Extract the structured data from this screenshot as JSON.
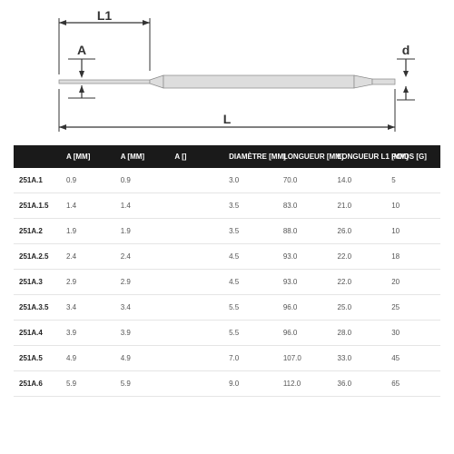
{
  "diagram": {
    "labels": {
      "L1": "L1",
      "A": "A",
      "d": "d",
      "L": "L"
    },
    "line_color": "#333333",
    "body_fill": "#dddddd",
    "body_stroke": "#888888"
  },
  "table": {
    "header_bg": "#1a1a1a",
    "header_color": "#ffffff",
    "row_border": "#e5e5e5",
    "columns": [
      "",
      "A [MM]",
      "A [MM]",
      "A []",
      "DIAMÈTRE [MM]",
      "LONGUEUR [MM]",
      "LONGUEUR L1 [MM]",
      "POIDS [G]"
    ],
    "rows": [
      [
        "251A.1",
        "0.9",
        "0.9",
        "",
        "3.0",
        "70.0",
        "14.0",
        "5"
      ],
      [
        "251A.1.5",
        "1.4",
        "1.4",
        "",
        "3.5",
        "83.0",
        "21.0",
        "10"
      ],
      [
        "251A.2",
        "1.9",
        "1.9",
        "",
        "3.5",
        "88.0",
        "26.0",
        "10"
      ],
      [
        "251A.2.5",
        "2.4",
        "2.4",
        "",
        "4.5",
        "93.0",
        "22.0",
        "18"
      ],
      [
        "251A.3",
        "2.9",
        "2.9",
        "",
        "4.5",
        "93.0",
        "22.0",
        "20"
      ],
      [
        "251A.3.5",
        "3.4",
        "3.4",
        "",
        "5.5",
        "96.0",
        "25.0",
        "25"
      ],
      [
        "251A.4",
        "3.9",
        "3.9",
        "",
        "5.5",
        "96.0",
        "28.0",
        "30"
      ],
      [
        "251A.5",
        "4.9",
        "4.9",
        "",
        "7.0",
        "107.0",
        "33.0",
        "45"
      ],
      [
        "251A.6",
        "5.9",
        "5.9",
        "",
        "9.0",
        "112.0",
        "36.0",
        "65"
      ]
    ]
  }
}
